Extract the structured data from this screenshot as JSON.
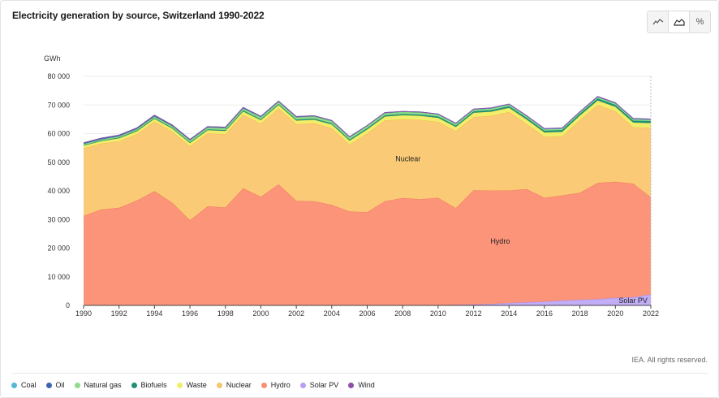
{
  "header": {
    "title": "Electricity generation by source, Switzerland 1990-2022"
  },
  "toolbar": {
    "buttons": [
      {
        "name": "line-chart-icon"
      },
      {
        "name": "area-chart-icon"
      },
      {
        "name": "percent-icon",
        "label": "%"
      }
    ]
  },
  "footer": {
    "credit": "IEA. All rights reserved."
  },
  "colors": {
    "Coal": "#56b8d6",
    "Oil": "#3f64b0",
    "Natural gas": "#8fdb8b",
    "Biofuels": "#1f8f76",
    "Waste": "#f2ee6b",
    "Nuclear": "#f9c46d",
    "Hydro": "#fb8e70",
    "Solar PV": "#b8a0f0",
    "Wind": "#8d4fa8",
    "Nuclear_fill": "#fbca76",
    "Hydro_fill": "#fb9479",
    "Solar_fill": "#c2aef7"
  },
  "chart_data": {
    "type": "area",
    "stacked": true,
    "title": "Electricity generation by source, Switzerland 1990-2022",
    "ylabel": "GWh",
    "xlabel": "",
    "ylim": [
      0,
      80000
    ],
    "yticks": [
      "0",
      "10 000",
      "20 000",
      "30 000",
      "40 000",
      "50 000",
      "60 000",
      "70 000",
      "80 000"
    ],
    "xticks": [
      "1990",
      "1992",
      "1994",
      "1996",
      "1998",
      "2000",
      "2002",
      "2004",
      "2006",
      "2008",
      "2010",
      "2012",
      "2014",
      "2016",
      "2018",
      "2020",
      "2022"
    ],
    "x": [
      1990,
      1991,
      1992,
      1993,
      1994,
      1995,
      1996,
      1997,
      1998,
      1999,
      2000,
      2001,
      2002,
      2003,
      2004,
      2005,
      2006,
      2007,
      2008,
      2009,
      2010,
      2011,
      2012,
      2013,
      2014,
      2015,
      2016,
      2017,
      2018,
      2019,
      2020,
      2021,
      2022
    ],
    "series": [
      {
        "name": "Solar PV",
        "values": [
          0,
          0,
          0,
          0,
          0,
          0,
          0,
          0,
          0,
          0,
          0,
          0,
          0,
          0,
          0,
          0,
          0,
          0,
          0,
          0,
          100,
          200,
          300,
          500,
          850,
          1100,
          1300,
          1700,
          1950,
          2200,
          2600,
          2850,
          3850
        ]
      },
      {
        "name": "Hydro",
        "values": [
          31300,
          33500,
          34100,
          36600,
          39900,
          35900,
          29700,
          34600,
          34200,
          40900,
          37900,
          42300,
          36500,
          36400,
          35100,
          32800,
          32600,
          36400,
          37500,
          37100,
          37500,
          33800,
          39900,
          39600,
          39300,
          39500,
          36300,
          36700,
          37400,
          40600,
          40600,
          39700,
          33900
        ]
      },
      {
        "name": "Nuclear",
        "values": [
          23600,
          23000,
          23300,
          23200,
          24300,
          24800,
          25900,
          25500,
          25600,
          25700,
          25600,
          26500,
          26800,
          27200,
          26800,
          23400,
          27500,
          28200,
          27500,
          27700,
          26500,
          26900,
          25600,
          26100,
          27400,
          22800,
          21300,
          20700,
          25400,
          27200,
          24600,
          19700,
          24300
        ]
      },
      {
        "name": "Waste",
        "values": [
          900,
          900,
          950,
          1000,
          1000,
          1050,
          1100,
          1100,
          1150,
          1150,
          1200,
          1200,
          1250,
          1250,
          1300,
          1300,
          1350,
          1350,
          1400,
          1400,
          1400,
          1400,
          1450,
          1450,
          1450,
          1500,
          1500,
          1500,
          1550,
          1550,
          1550,
          1600,
          1600
        ]
      },
      {
        "name": "Biofuels",
        "values": [
          200,
          200,
          250,
          250,
          250,
          300,
          300,
          300,
          300,
          350,
          350,
          350,
          350,
          400,
          400,
          400,
          450,
          450,
          450,
          450,
          500,
          500,
          550,
          550,
          550,
          600,
          600,
          650,
          650,
          700,
          700,
          700,
          750
        ]
      },
      {
        "name": "Natural gas",
        "values": [
          400,
          400,
          450,
          500,
          550,
          600,
          650,
          650,
          700,
          700,
          750,
          750,
          800,
          800,
          800,
          800,
          800,
          800,
          750,
          750,
          700,
          650,
          600,
          600,
          600,
          550,
          550,
          500,
          500,
          500,
          500,
          500,
          450
        ]
      },
      {
        "name": "Oil",
        "values": [
          400,
          400,
          400,
          400,
          400,
          350,
          350,
          300,
          300,
          300,
          250,
          250,
          250,
          200,
          200,
          200,
          150,
          150,
          150,
          150,
          100,
          100,
          100,
          100,
          100,
          100,
          100,
          100,
          100,
          100,
          100,
          100,
          100
        ]
      },
      {
        "name": "Coal",
        "values": [
          0,
          0,
          0,
          0,
          0,
          0,
          0,
          0,
          0,
          0,
          0,
          0,
          0,
          0,
          0,
          0,
          0,
          0,
          0,
          0,
          0,
          0,
          0,
          0,
          0,
          0,
          0,
          0,
          0,
          0,
          0,
          0,
          0
        ]
      },
      {
        "name": "Wind",
        "values": [
          0,
          0,
          0,
          0,
          0,
          0,
          0,
          0,
          0,
          0,
          0,
          0,
          0,
          0,
          0,
          0,
          0,
          0,
          0,
          0,
          40,
          70,
          90,
          90,
          100,
          110,
          110,
          130,
          120,
          150,
          140,
          150,
          150
        ]
      }
    ],
    "annotations": [
      {
        "text": "Nuclear",
        "series": "Nuclear"
      },
      {
        "text": "Hydro",
        "series": "Hydro"
      },
      {
        "text": "Solar PV",
        "series": "Solar PV"
      }
    ],
    "legend": [
      "Coal",
      "Oil",
      "Natural gas",
      "Biofuels",
      "Waste",
      "Nuclear",
      "Hydro",
      "Solar PV",
      "Wind"
    ],
    "legend_position": "bottom-left"
  }
}
